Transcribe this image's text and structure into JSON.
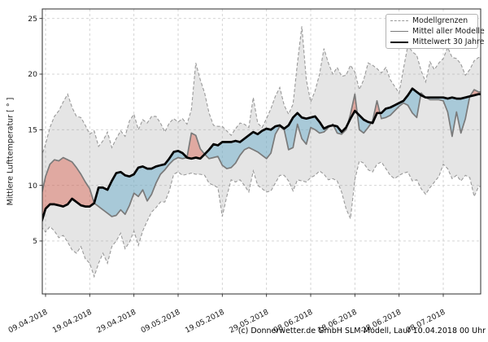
{
  "figure": {
    "y_axis_label": "Mittlere Lufttemperatur [ ° ]",
    "caption": "(c) Donnerwetter.de GmbH SLM-Modell, Lauf 10.04.2018 00 Uhr",
    "legend": {
      "items": [
        {
          "label": "Modellgrenzen",
          "style": "dashed-gray"
        },
        {
          "label": "Mittel aller Modelle",
          "style": "solid-gray"
        },
        {
          "label": "Mittelwert 30 Jahre",
          "style": "solid-black-thick"
        }
      ]
    },
    "colors": {
      "band_fill": "rgba(160,160,160,0.28)",
      "band_edge": "#999999",
      "model_mean_line": "#7a7a7a",
      "mean30_line": "#000000",
      "warmer_fill": "rgba(217,95,77,0.45)",
      "colder_fill": "rgba(107,174,204,0.50)",
      "grid": "#cfcfcf",
      "frame": "#2b2b2b",
      "text": "#1a1a1a"
    }
  },
  "chart_data": {
    "type": "line",
    "title": "",
    "xlabel": "",
    "ylabel": "Mittlere Lufttemperatur [ ° ]",
    "grid": true,
    "legend_position": "upper right",
    "x_unit": "days, day 0 = 08.04.2018",
    "ylim": [
      0.2,
      25.9
    ],
    "y_ticks": [
      5,
      10,
      15,
      20,
      25
    ],
    "x_tick_days": [
      1,
      11,
      21,
      31,
      41,
      51,
      61,
      71,
      81,
      91
    ],
    "x_tick_labels": [
      "09.04.2018",
      "19.04.2018",
      "29.04.2018",
      "09.05.2018",
      "19.05.2018",
      "29.05.2018",
      "08.06.2018",
      "18.06.2018",
      "28.06.2018",
      "08.07.2018"
    ],
    "fills": {
      "warmer_rule": "Mittel aller Modelle > Mittelwert 30 Jahre (rot)",
      "colder_rule": "Mittel aller Modelle < Mittelwert 30 Jahre (blau)",
      "band_rule": "Spanne zwischen Modellgrenzen (grau)"
    },
    "series": [
      {
        "name": "Modellgrenzen oben",
        "style": "dashed",
        "values": [
          12.5,
          13.7,
          15.2,
          16.2,
          16.7,
          17.5,
          18.2,
          17.0,
          16.2,
          16.1,
          15.4,
          14.6,
          14.9,
          13.5,
          14.0,
          14.8,
          13.4,
          14.2,
          14.9,
          14.4,
          15.8,
          16.4,
          15.0,
          15.9,
          15.6,
          16.2,
          16.2,
          15.6,
          14.8,
          15.6,
          16.0,
          15.7,
          16.0,
          15.5,
          16.8,
          21.0,
          19.5,
          18.3,
          16.5,
          15.4,
          15.3,
          15.3,
          14.9,
          14.5,
          15.1,
          15.6,
          15.5,
          15.2,
          17.9,
          15.6,
          15.2,
          16.0,
          16.9,
          18.0,
          18.8,
          17.2,
          16.4,
          17.3,
          21.0,
          24.3,
          19.5,
          17.5,
          18.5,
          20.0,
          22.3,
          21.0,
          20.0,
          20.6,
          19.8,
          19.9,
          20.8,
          20.2,
          18.6,
          19.5,
          21.0,
          20.8,
          20.5,
          20.1,
          20.6,
          19.5,
          18.9,
          18.3,
          20.5,
          22.6,
          22.0,
          21.7,
          20.3,
          19.3,
          21.1,
          20.4,
          21.0,
          21.4,
          22.4,
          21.5,
          21.4,
          20.9,
          19.9,
          20.4,
          21.2,
          21.5
        ]
      },
      {
        "name": "Modellgrenzen unten",
        "style": "dashed",
        "values": [
          6.3,
          5.8,
          6.3,
          5.9,
          5.3,
          5.5,
          4.9,
          4.2,
          3.9,
          4.5,
          3.4,
          3.0,
          1.8,
          3.0,
          3.9,
          3.0,
          4.5,
          5.0,
          5.7,
          4.3,
          4.9,
          5.9,
          4.6,
          5.9,
          6.8,
          7.6,
          8.0,
          8.5,
          8.5,
          9.5,
          11.0,
          11.2,
          10.9,
          11.0,
          11.1,
          11.0,
          11.0,
          10.9,
          10.2,
          10.0,
          9.8,
          7.2,
          9.0,
          10.5,
          10.3,
          10.5,
          10.0,
          9.4,
          11.3,
          10.0,
          9.7,
          9.4,
          9.5,
          10.2,
          10.9,
          10.9,
          10.4,
          9.5,
          10.5,
          10.4,
          10.3,
          10.7,
          10.9,
          11.3,
          11.0,
          10.5,
          10.6,
          10.4,
          9.4,
          7.9,
          7.0,
          10.5,
          12.2,
          12.0,
          11.4,
          11.2,
          11.9,
          12.1,
          11.5,
          10.9,
          10.6,
          10.9,
          11.1,
          11.2,
          10.4,
          10.5,
          9.7,
          9.2,
          9.8,
          10.3,
          10.8,
          11.9,
          11.5,
          10.6,
          10.9,
          10.4,
          10.9,
          10.7,
          9.0,
          9.9
        ]
      },
      {
        "name": "Mittel aller Modelle",
        "style": "solid",
        "values": [
          9.0,
          10.8,
          11.9,
          12.3,
          12.2,
          12.5,
          12.3,
          12.1,
          11.6,
          11.0,
          10.3,
          9.7,
          8.4,
          8.1,
          7.8,
          7.5,
          7.2,
          7.3,
          7.8,
          7.4,
          8.2,
          9.3,
          9.0,
          9.6,
          8.6,
          9.2,
          10.2,
          11.0,
          11.4,
          11.9,
          12.3,
          12.5,
          12.4,
          12.5,
          14.7,
          14.5,
          13.3,
          12.8,
          12.4,
          12.5,
          12.6,
          11.8,
          11.5,
          11.6,
          12.0,
          12.7,
          13.2,
          13.4,
          13.2,
          13.0,
          12.7,
          12.4,
          12.9,
          14.6,
          15.3,
          15.0,
          13.2,
          13.4,
          15.5,
          14.2,
          13.7,
          15.2,
          15.0,
          14.7,
          14.8,
          15.2,
          15.5,
          14.7,
          14.6,
          15.0,
          16.4,
          18.2,
          15.0,
          14.7,
          15.2,
          15.8,
          17.6,
          16.0,
          16.1,
          16.3,
          16.7,
          17.1,
          17.4,
          17.2,
          16.5,
          16.1,
          18.3,
          17.9,
          17.7,
          17.7,
          17.7,
          17.6,
          16.6,
          14.4,
          16.6,
          14.7,
          16.0,
          18.0,
          18.6,
          18.4
        ]
      },
      {
        "name": "Mittelwert 30 Jahre",
        "style": "solid-thick",
        "values": [
          6.6,
          7.9,
          8.3,
          8.3,
          8.2,
          8.1,
          8.3,
          8.8,
          8.5,
          8.2,
          8.1,
          8.1,
          8.4,
          9.8,
          9.8,
          9.6,
          10.4,
          11.1,
          11.2,
          10.9,
          10.8,
          11.0,
          11.6,
          11.7,
          11.5,
          11.5,
          11.7,
          11.8,
          11.9,
          12.4,
          13.0,
          13.1,
          12.9,
          12.5,
          12.4,
          12.5,
          12.4,
          12.8,
          13.2,
          13.7,
          13.6,
          13.9,
          13.9,
          13.9,
          14.0,
          13.9,
          14.2,
          14.5,
          14.8,
          14.6,
          14.9,
          15.1,
          15.0,
          15.3,
          15.4,
          15.1,
          15.4,
          16.1,
          16.5,
          16.1,
          16.0,
          16.1,
          16.2,
          15.7,
          15.1,
          15.3,
          15.4,
          15.3,
          14.8,
          15.2,
          16.0,
          16.7,
          16.3,
          15.9,
          15.7,
          15.6,
          16.5,
          16.5,
          16.9,
          17.0,
          17.2,
          17.4,
          17.6,
          18.1,
          18.7,
          18.4,
          18.1,
          17.9,
          17.9,
          17.9,
          17.9,
          17.9,
          17.8,
          17.9,
          17.8,
          17.8,
          17.9,
          18.0,
          18.1,
          18.2
        ]
      }
    ]
  }
}
